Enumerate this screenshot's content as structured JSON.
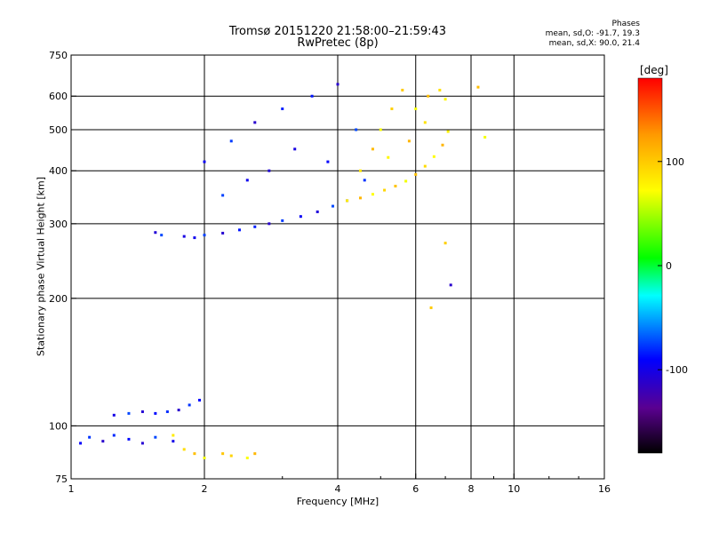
{
  "chart_data": {
    "type": "scatter",
    "title": "Tromsø 20151220 21:58:00–21:59:43",
    "subtitle": "RwPretec (8p)",
    "xlabel": "Frequency [MHz]",
    "ylabel": "Stationary phase Virtual Height [km]",
    "x_scale": "log",
    "y_scale": "log",
    "xlim": [
      1,
      16
    ],
    "ylim": [
      75,
      750
    ],
    "x_ticks": [
      1,
      2,
      4,
      6,
      8,
      10,
      16
    ],
    "x_gridlines": [
      2,
      4,
      6,
      8,
      10
    ],
    "y_ticks": [
      75,
      100,
      200,
      300,
      400,
      500,
      600,
      750
    ],
    "y_gridlines": [
      100,
      200,
      300,
      400,
      500,
      600
    ],
    "grid": true,
    "phases_box": {
      "heading": "Phases",
      "o_line": "mean, sd,O: -91.7, 19.3",
      "x_line": "mean, sd,X:  90.0, 21.4"
    },
    "colorbar": {
      "unit": "[deg]",
      "ticks": [
        100,
        0,
        -100
      ],
      "range": [
        -180,
        180
      ],
      "colormap": "rainbow (black-purple-blue-cyan-green-yellow-orange-red)"
    },
    "series": [
      {
        "name": "O",
        "phase_mean": -91.7,
        "phase_sd": 19.3,
        "points": [
          {
            "f": 1.05,
            "h": 91
          },
          {
            "f": 1.1,
            "h": 94
          },
          {
            "f": 1.18,
            "h": 92
          },
          {
            "f": 1.25,
            "h": 95
          },
          {
            "f": 1.35,
            "h": 93
          },
          {
            "f": 1.45,
            "h": 91
          },
          {
            "f": 1.55,
            "h": 94
          },
          {
            "f": 1.7,
            "h": 92
          },
          {
            "f": 1.25,
            "h": 106
          },
          {
            "f": 1.35,
            "h": 107
          },
          {
            "f": 1.45,
            "h": 108
          },
          {
            "f": 1.55,
            "h": 107
          },
          {
            "f": 1.65,
            "h": 108
          },
          {
            "f": 1.75,
            "h": 109
          },
          {
            "f": 1.85,
            "h": 112
          },
          {
            "f": 1.95,
            "h": 115
          },
          {
            "f": 1.55,
            "h": 286
          },
          {
            "f": 1.6,
            "h": 282
          },
          {
            "f": 1.8,
            "h": 280
          },
          {
            "f": 1.9,
            "h": 278
          },
          {
            "f": 2.0,
            "h": 282
          },
          {
            "f": 2.2,
            "h": 285
          },
          {
            "f": 2.4,
            "h": 290
          },
          {
            "f": 2.6,
            "h": 295
          },
          {
            "f": 2.8,
            "h": 300
          },
          {
            "f": 3.0,
            "h": 305
          },
          {
            "f": 3.3,
            "h": 312
          },
          {
            "f": 3.6,
            "h": 320
          },
          {
            "f": 3.9,
            "h": 330
          },
          {
            "f": 4.2,
            "h": 340
          },
          {
            "f": 2.0,
            "h": 420
          },
          {
            "f": 2.3,
            "h": 470
          },
          {
            "f": 2.6,
            "h": 520
          },
          {
            "f": 3.0,
            "h": 560
          },
          {
            "f": 3.5,
            "h": 600
          },
          {
            "f": 4.0,
            "h": 640
          },
          {
            "f": 2.2,
            "h": 350
          },
          {
            "f": 2.5,
            "h": 380
          },
          {
            "f": 3.2,
            "h": 450
          },
          {
            "f": 4.4,
            "h": 500
          },
          {
            "f": 2.8,
            "h": 400
          },
          {
            "f": 3.8,
            "h": 420
          },
          {
            "f": 4.6,
            "h": 380
          },
          {
            "f": 7.2,
            "h": 215
          }
        ]
      },
      {
        "name": "X",
        "phase_mean": 90.0,
        "phase_sd": 21.4,
        "points": [
          {
            "f": 1.8,
            "h": 88
          },
          {
            "f": 1.9,
            "h": 86
          },
          {
            "f": 2.0,
            "h": 84
          },
          {
            "f": 2.2,
            "h": 86
          },
          {
            "f": 2.3,
            "h": 85
          },
          {
            "f": 2.5,
            "h": 84
          },
          {
            "f": 2.6,
            "h": 86
          },
          {
            "f": 1.7,
            "h": 95
          },
          {
            "f": 4.2,
            "h": 340
          },
          {
            "f": 4.5,
            "h": 345
          },
          {
            "f": 4.8,
            "h": 352
          },
          {
            "f": 5.1,
            "h": 360
          },
          {
            "f": 5.4,
            "h": 368
          },
          {
            "f": 5.7,
            "h": 378
          },
          {
            "f": 6.0,
            "h": 392
          },
          {
            "f": 6.3,
            "h": 410
          },
          {
            "f": 6.6,
            "h": 432
          },
          {
            "f": 6.9,
            "h": 460
          },
          {
            "f": 7.1,
            "h": 495
          },
          {
            "f": 4.5,
            "h": 400
          },
          {
            "f": 4.8,
            "h": 450
          },
          {
            "f": 5.0,
            "h": 500
          },
          {
            "f": 5.3,
            "h": 560
          },
          {
            "f": 5.6,
            "h": 620
          },
          {
            "f": 6.0,
            "h": 560
          },
          {
            "f": 6.4,
            "h": 600
          },
          {
            "f": 6.8,
            "h": 620
          },
          {
            "f": 7.0,
            "h": 590
          },
          {
            "f": 5.8,
            "h": 470
          },
          {
            "f": 5.2,
            "h": 430
          },
          {
            "f": 6.3,
            "h": 520
          },
          {
            "f": 8.3,
            "h": 630
          },
          {
            "f": 8.6,
            "h": 480
          },
          {
            "f": 6.5,
            "h": 190
          },
          {
            "f": 7.0,
            "h": 270
          }
        ]
      }
    ]
  }
}
